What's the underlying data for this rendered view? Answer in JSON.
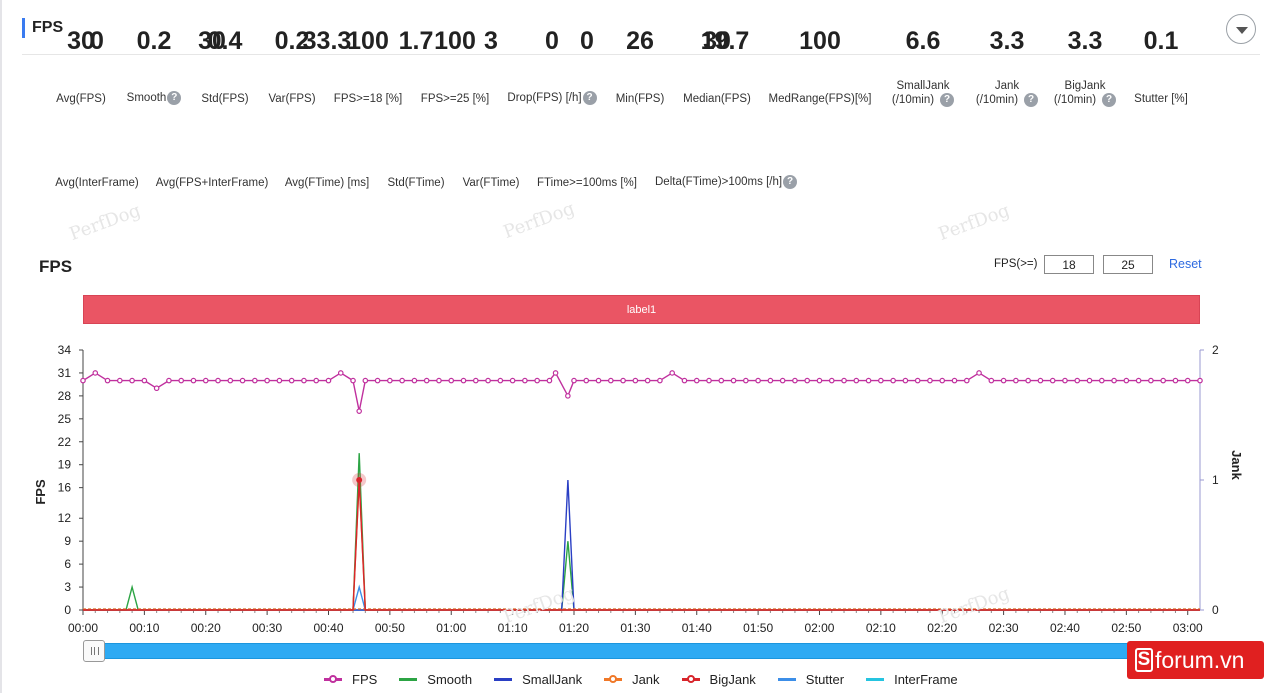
{
  "panel": {
    "title": "FPS"
  },
  "metrics_row1": [
    {
      "label": "Avg(FPS)",
      "value": "30",
      "help": false
    },
    {
      "label": "Smooth",
      "value": "0.2",
      "help": true
    },
    {
      "label": "Std(FPS)",
      "value": "0.4",
      "help": false
    },
    {
      "label": "Var(FPS)",
      "value": "0.2",
      "help": false
    },
    {
      "label": "FPS>=18 [%]",
      "value": "100",
      "help": false
    },
    {
      "label": "FPS>=25 [%]",
      "value": "100",
      "help": false
    },
    {
      "label": "Drop(FPS) [/h]",
      "value": "0",
      "help": true
    },
    {
      "label": "Min(FPS)",
      "value": "26",
      "help": false
    },
    {
      "label": "Median(FPS)",
      "value": "30",
      "help": false
    },
    {
      "label": "MedRange(FPS)[%]",
      "value": "100",
      "help": false
    },
    {
      "label": "SmallJank",
      "label2": "(/10min)",
      "value": "6.6",
      "help": true
    },
    {
      "label": "Jank",
      "label2": "(/10min)",
      "value": "3.3",
      "help": true
    },
    {
      "label": "BigJank",
      "label2": "(/10min)",
      "value": "3.3",
      "help": true
    },
    {
      "label": "Stutter [%]",
      "value": "0.1",
      "help": false
    }
  ],
  "metrics_row2": [
    {
      "label": "Avg(InterFrame)",
      "value": "0",
      "help": false
    },
    {
      "label": "Avg(FPS+InterFrame)",
      "value": "30",
      "help": false
    },
    {
      "label": "Avg(FTime) [ms]",
      "value": "33.3",
      "help": false
    },
    {
      "label": "Std(FTime)",
      "value": "1.7",
      "help": false
    },
    {
      "label": "Var(FTime)",
      "value": "3",
      "help": false
    },
    {
      "label": "FTime>=100ms [%]",
      "value": "0",
      "help": false
    },
    {
      "label": "Delta(FTime)>100ms [/h]",
      "value": "19.7",
      "help": true
    }
  ],
  "watermark_text": "PerfDog",
  "chart_section": {
    "title": "FPS",
    "filter_label": "FPS(>=)",
    "threshold_low": "18",
    "threshold_high": "25",
    "reset_label": "Reset",
    "label_bar_text": "label1"
  },
  "legend": [
    {
      "name": "FPS",
      "color": "#c0309e",
      "marker": true
    },
    {
      "name": "Smooth",
      "color": "#2ca444",
      "marker": false
    },
    {
      "name": "SmallJank",
      "color": "#2a3fc4",
      "marker": false
    },
    {
      "name": "Jank",
      "color": "#f07828",
      "marker": true
    },
    {
      "name": "BigJank",
      "color": "#d8252b",
      "marker": true
    },
    {
      "name": "Stutter",
      "color": "#3c8ee8",
      "marker": false
    },
    {
      "name": "InterFrame",
      "color": "#25c4e0",
      "marker": false
    }
  ],
  "brand": {
    "icon": "S",
    "text": "forum.vn"
  },
  "chart_data": {
    "type": "line",
    "ylabel": "FPS",
    "y2label": "Jank",
    "ylim": [
      0,
      34
    ],
    "y2lim": [
      0,
      2
    ],
    "yticks": [
      0,
      3,
      6,
      9,
      12,
      16,
      19,
      22,
      25,
      28,
      31,
      34
    ],
    "y2ticks": [
      0,
      1,
      2
    ],
    "xticks": [
      "00:00",
      "00:10",
      "00:20",
      "00:30",
      "00:40",
      "00:50",
      "01:00",
      "01:10",
      "01:20",
      "01:30",
      "01:40",
      "01:50",
      "02:00",
      "02:10",
      "02:20",
      "02:30",
      "02:40",
      "02:50",
      "03:00"
    ],
    "xlim_seconds": [
      0,
      182
    ],
    "grid": false,
    "series": [
      {
        "name": "FPS",
        "x": [
          0,
          2,
          4,
          6,
          8,
          10,
          12,
          14,
          16,
          18,
          20,
          22,
          24,
          26,
          28,
          30,
          32,
          34,
          36,
          38,
          40,
          42,
          44,
          45,
          46,
          48,
          50,
          52,
          54,
          56,
          58,
          60,
          62,
          64,
          66,
          68,
          70,
          72,
          74,
          76,
          77,
          79,
          80,
          82,
          84,
          86,
          88,
          90,
          92,
          94,
          96,
          98,
          100,
          102,
          104,
          106,
          108,
          110,
          112,
          114,
          116,
          118,
          120,
          122,
          124,
          126,
          128,
          130,
          132,
          134,
          136,
          138,
          140,
          142,
          144,
          146,
          148,
          150,
          152,
          154,
          156,
          158,
          160,
          162,
          164,
          166,
          168,
          170,
          172,
          174,
          176,
          178,
          180,
          182
        ],
        "y": [
          30,
          31,
          30,
          30,
          30,
          30,
          29,
          30,
          30,
          30,
          30,
          30,
          30,
          30,
          30,
          30,
          30,
          30,
          30,
          30,
          30,
          31,
          30,
          26,
          30,
          30,
          30,
          30,
          30,
          30,
          30,
          30,
          30,
          30,
          30,
          30,
          30,
          30,
          30,
          30,
          31,
          28,
          30,
          30,
          30,
          30,
          30,
          30,
          30,
          30,
          31,
          30,
          30,
          30,
          30,
          30,
          30,
          30,
          30,
          30,
          30,
          30,
          30,
          30,
          30,
          30,
          30,
          30,
          30,
          30,
          30,
          30,
          30,
          30,
          30,
          31,
          30,
          30,
          30,
          30,
          30,
          30,
          30,
          30,
          30,
          30,
          30,
          30,
          30,
          30,
          30,
          30,
          30,
          30
        ]
      },
      {
        "name": "Smooth",
        "x": [
          0,
          7,
          8,
          9,
          44,
          45,
          46,
          78,
          79,
          80,
          182
        ],
        "y": [
          0,
          0,
          3,
          0,
          0,
          20.5,
          0,
          0,
          9,
          0,
          0
        ]
      },
      {
        "name": "SmallJank",
        "x": [
          0,
          78,
          79,
          80,
          182
        ],
        "y2": [
          0,
          0,
          1,
          0,
          0
        ]
      },
      {
        "name": "Jank",
        "x": [
          0,
          44,
          45,
          46,
          182
        ],
        "y2": [
          0,
          0,
          1,
          0,
          0
        ]
      },
      {
        "name": "BigJank",
        "x": [
          0,
          44,
          45,
          46,
          182
        ],
        "y2": [
          0,
          0,
          1,
          0,
          0
        ]
      },
      {
        "name": "Stutter",
        "x": [
          0,
          44,
          45,
          46,
          182
        ],
        "y": [
          0,
          0,
          3,
          0,
          0
        ]
      },
      {
        "name": "InterFrame",
        "x": [
          0,
          182
        ],
        "y": [
          0,
          0
        ]
      }
    ]
  }
}
